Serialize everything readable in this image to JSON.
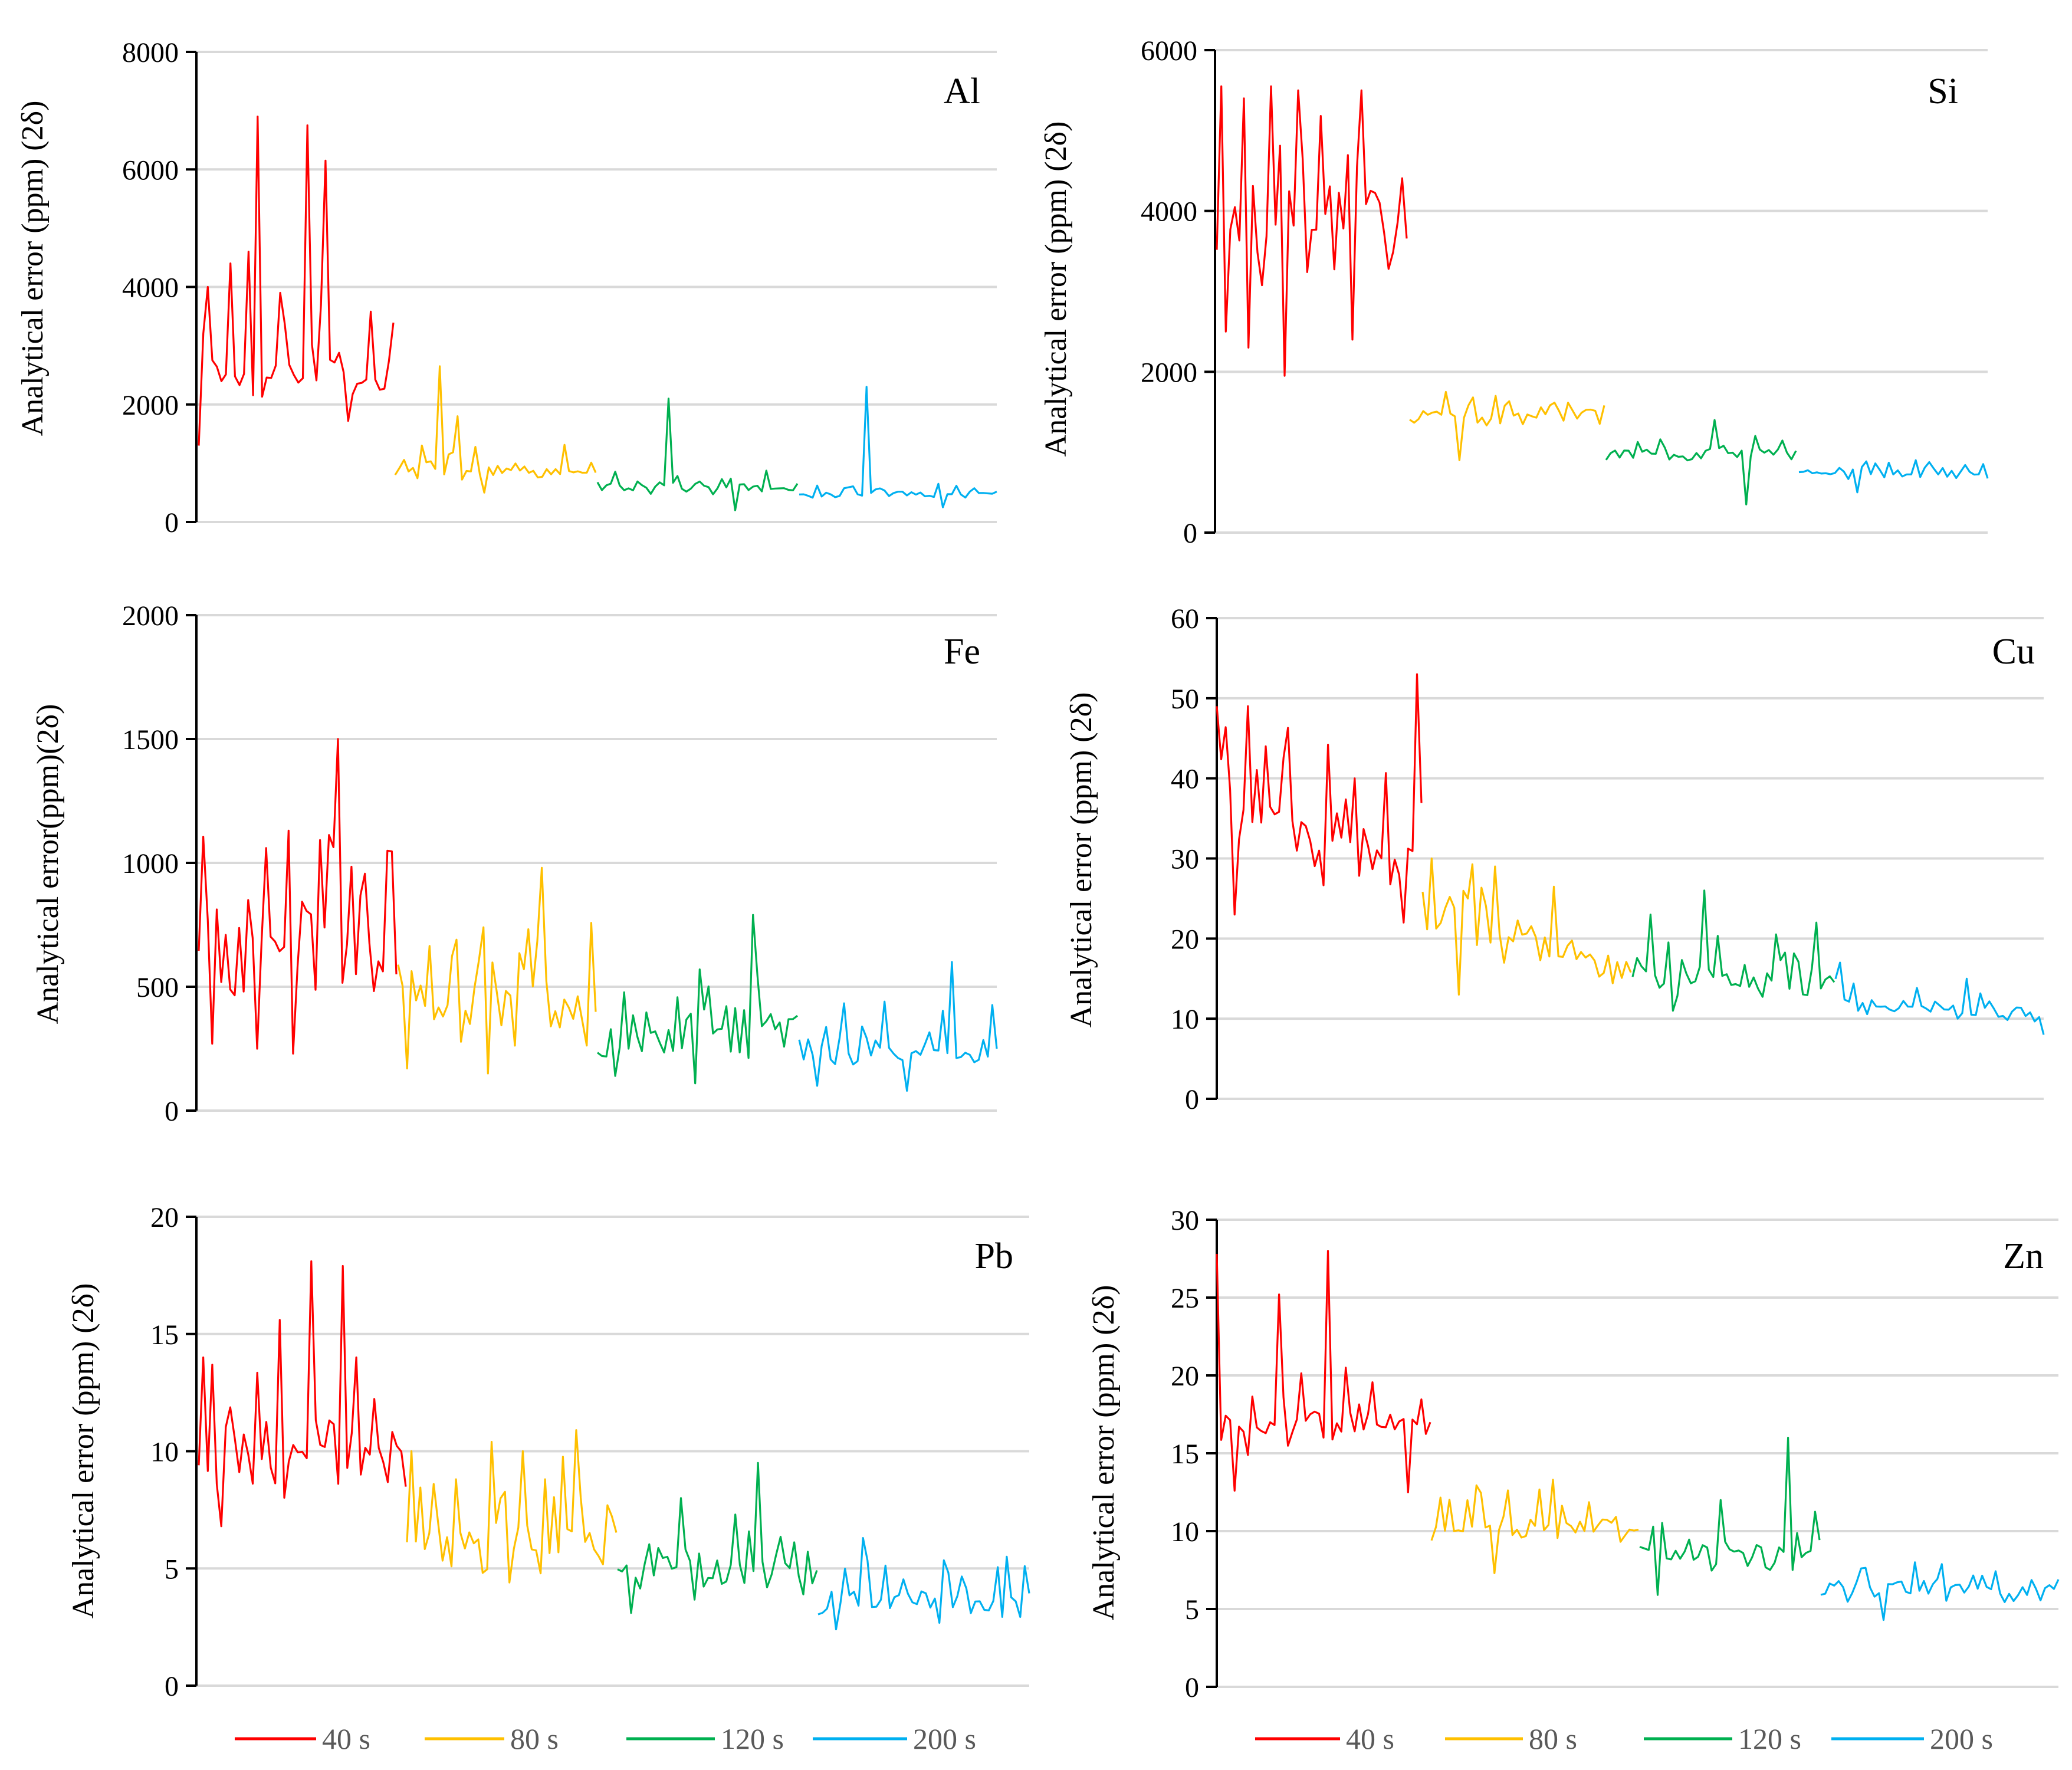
{
  "figure": {
    "series_names": [
      "40 s",
      "80 s",
      "120 s",
      "200 s"
    ]
  },
  "chart_data": [
    {
      "type": "line",
      "title": "Al",
      "ylabel": "Analytical error (ppm) (2δ)",
      "ylim": [
        0,
        8000
      ],
      "yticks": [
        0,
        2000,
        4000,
        6000,
        8000
      ],
      "grid": true,
      "legend": "none",
      "x": "sample index (unlabeled)",
      "series": [
        {
          "name": "40 s",
          "color": "#FF0000",
          "mean": 2500,
          "spread": 550,
          "spikes": [
            [
              14,
              6900
            ],
            [
              25,
              6750
            ],
            [
              29,
              6150
            ],
            [
              11,
              4600
            ],
            [
              2,
              4000
            ],
            [
              7,
              4400
            ],
            [
              19,
              3900
            ]
          ],
          "dips": [
            [
              0,
              1300
            ]
          ]
        },
        {
          "name": "80 s",
          "color": "#FFC000",
          "mean": 900,
          "spread": 170,
          "spikes": [
            [
              10,
              2650
            ],
            [
              14,
              1800
            ]
          ],
          "dips": [
            [
              20,
              500
            ]
          ]
        },
        {
          "name": "120 s",
          "color": "#00B050",
          "mean": 600,
          "spread": 110,
          "spikes": [
            [
              16,
              2100
            ]
          ],
          "dips": [
            [
              31,
              200
            ]
          ]
        },
        {
          "name": "200 s",
          "color": "#00B0F0",
          "mean": 480,
          "spread": 70,
          "spikes": [
            [
              15,
              2300
            ]
          ],
          "dips": [
            [
              33,
              250
            ]
          ]
        }
      ]
    },
    {
      "type": "line",
      "title": "Si",
      "ylabel": "Analytical error (ppm) (2δ)",
      "ylim": [
        0,
        6000
      ],
      "yticks": [
        0,
        2000,
        4000,
        6000
      ],
      "grid": true,
      "legend": "none",
      "x": "sample index (unlabeled)",
      "series": [
        {
          "name": "40 s",
          "color": "#FF0000",
          "mean": 3800,
          "spread": 700,
          "spikes": [
            [
              1,
              5550
            ],
            [
              13,
              5550
            ],
            [
              19,
              5500
            ],
            [
              34,
              5500
            ],
            [
              6,
              5400
            ]
          ],
          "dips": [
            [
              16,
              1950
            ],
            [
              32,
              2400
            ],
            [
              2,
              2500
            ],
            [
              8,
              2300
            ]
          ]
        },
        {
          "name": "80 s",
          "color": "#FFC000",
          "mean": 1430,
          "spread": 120,
          "spikes": [
            [
              8,
              1750
            ],
            [
              20,
              1700
            ]
          ],
          "dips": [
            [
              11,
              900
            ]
          ]
        },
        {
          "name": "120 s",
          "color": "#00B050",
          "mean": 1000,
          "spread": 90,
          "spikes": [
            [
              26,
              1400
            ]
          ],
          "dips": [
            [
              33,
              350
            ]
          ]
        },
        {
          "name": "200 s",
          "color": "#00B0F0",
          "mean": 740,
          "spread": 60,
          "spikes": [
            [
              28,
              900
            ]
          ],
          "dips": [
            [
              14,
              500
            ]
          ]
        }
      ]
    },
    {
      "type": "line",
      "title": "Fe",
      "ylabel": "Analytical error(ppm)(2δ)",
      "ylim": [
        0,
        2000
      ],
      "yticks": [
        0,
        500,
        1000,
        1500,
        2000
      ],
      "grid": true,
      "legend": "none",
      "x": "sample index (unlabeled)",
      "series": [
        {
          "name": "40 s",
          "color": "#FF0000",
          "mean": 650,
          "spread": 200,
          "spikes": [
            [
              32,
              1500
            ],
            [
              20,
              1130
            ],
            [
              15,
              1060
            ],
            [
              11,
              850
            ]
          ],
          "dips": [
            [
              21,
              230
            ],
            [
              13,
              250
            ],
            [
              3,
              270
            ]
          ]
        },
        {
          "name": "80 s",
          "color": "#FFC000",
          "mean": 420,
          "spread": 140,
          "spikes": [
            [
              33,
              980
            ],
            [
              19,
              740
            ],
            [
              13,
              690
            ]
          ],
          "dips": [
            [
              20,
              150
            ],
            [
              2,
              170
            ]
          ]
        },
        {
          "name": "120 s",
          "color": "#00B050",
          "mean": 310,
          "spread": 110,
          "spikes": [
            [
              35,
              790
            ],
            [
              23,
              570
            ]
          ],
          "dips": [
            [
              22,
              110
            ],
            [
              4,
              140
            ]
          ]
        },
        {
          "name": "200 s",
          "color": "#00B0F0",
          "mean": 240,
          "spread": 80,
          "spikes": [
            [
              35,
              600
            ],
            [
              19,
              440
            ]
          ],
          "dips": [
            [
              25,
              80
            ],
            [
              4,
              100
            ]
          ]
        }
      ]
    },
    {
      "type": "line",
      "title": "Cu",
      "ylabel": "Analytical error (ppm) (2δ)",
      "ylim": [
        0,
        60
      ],
      "yticks": [
        0,
        10,
        20,
        30,
        40,
        50,
        60
      ],
      "grid": true,
      "legend": "none",
      "x": "sample index (unlabeled)",
      "series": [
        {
          "name": "40 s",
          "color": "#FF0000",
          "mean": 30,
          "spread": 5,
          "trend": [
            38,
            27
          ],
          "spikes": [
            [
              44,
              53
            ],
            [
              0,
              49
            ],
            [
              7,
              49
            ],
            [
              11,
              44
            ],
            [
              30,
              40
            ]
          ],
          "dips": [
            [
              4,
              23
            ],
            [
              41,
              22
            ]
          ]
        },
        {
          "name": "80 s",
          "color": "#FFC000",
          "mean": 20,
          "spread": 3.3,
          "trend": [
            24,
            17
          ],
          "spikes": [
            [
              2,
              30
            ],
            [
              16,
              29
            ],
            [
              10,
              25
            ]
          ],
          "dips": [
            [
              8,
              13
            ]
          ]
        },
        {
          "name": "120 s",
          "color": "#00B050",
          "mean": 15,
          "spread": 2.5,
          "trend": [
            16,
            14
          ],
          "spikes": [
            [
              16,
              26
            ],
            [
              4,
              23
            ],
            [
              41,
              22
            ]
          ],
          "dips": [
            [
              9,
              11
            ]
          ]
        },
        {
          "name": "200 s",
          "color": "#00B0F0",
          "mean": 11,
          "spread": 1.2,
          "trend": [
            12,
            10
          ],
          "spikes": [
            [
              1,
              17
            ],
            [
              28,
              15
            ]
          ],
          "dips": [
            [
              45,
              8
            ]
          ]
        }
      ]
    },
    {
      "type": "line",
      "title": "Pb",
      "ylabel": "Analytical error (ppm) (2δ)",
      "ylim": [
        0,
        20
      ],
      "yticks": [
        0,
        5,
        10,
        15,
        20
      ],
      "grid": true,
      "legend": "none",
      "x": "sample index (unlabeled)",
      "series": [
        {
          "name": "40 s",
          "color": "#FF0000",
          "mean": 10,
          "spread": 1.8,
          "spikes": [
            [
              24,
              18.1
            ],
            [
              31,
              17.9
            ],
            [
              18,
              15.6
            ],
            [
              1,
              14
            ],
            [
              34,
              14
            ]
          ],
          "dips": [
            [
              5,
              6.8
            ]
          ]
        },
        {
          "name": "80 s",
          "color": "#FFC000",
          "mean": 6.3,
          "spread": 1.4,
          "spikes": [
            [
              36,
              10.9
            ],
            [
              18,
              10.4
            ],
            [
              25,
              10
            ],
            [
              1,
              10
            ]
          ],
          "dips": [
            [
              22,
              4.4
            ]
          ]
        },
        {
          "name": "120 s",
          "color": "#00B050",
          "mean": 4.9,
          "spread": 0.9,
          "spikes": [
            [
              32,
              9.5
            ],
            [
              14,
              8
            ],
            [
              27,
              7.3
            ]
          ],
          "dips": [
            [
              3,
              3.1
            ]
          ]
        },
        {
          "name": "200 s",
          "color": "#00B0F0",
          "mean": 3.6,
          "spread": 0.7,
          "spikes": [
            [
              10,
              6.3
            ],
            [
              40,
              5.5
            ],
            [
              44,
              5.1
            ]
          ],
          "dips": [
            [
              4,
              2.4
            ]
          ]
        }
      ]
    },
    {
      "type": "line",
      "title": "Zn",
      "ylabel": "Analytical error (ppm) (2δ)",
      "ylim": [
        0,
        30
      ],
      "yticks": [
        0,
        5,
        10,
        15,
        20,
        25,
        30
      ],
      "grid": true,
      "legend": "none",
      "x": "sample index (unlabeled)",
      "series": [
        {
          "name": "40 s",
          "color": "#FF0000",
          "mean": 16.5,
          "spread": 1.5,
          "spikes": [
            [
              0,
              27.8
            ],
            [
              23,
              28
            ],
            [
              13,
              25.2
            ],
            [
              27,
              20.5
            ]
          ],
          "dips": [
            [
              4,
              12.6
            ],
            [
              40,
              12.5
            ]
          ]
        },
        {
          "name": "80 s",
          "color": "#FFC000",
          "mean": 10.3,
          "spread": 1.1,
          "spikes": [
            [
              26,
              13.3
            ]
          ],
          "dips": [
            [
              14,
              7.3
            ]
          ]
        },
        {
          "name": "120 s",
          "color": "#00B050",
          "mean": 8.5,
          "spread": 1.1,
          "spikes": [
            [
              37,
              16
            ],
            [
              20,
              12
            ]
          ],
          "dips": [
            [
              4,
              5.9
            ]
          ]
        },
        {
          "name": "200 s",
          "color": "#00B0F0",
          "mean": 6.2,
          "spread": 0.7,
          "spikes": [
            [
              18,
              8
            ]
          ],
          "dips": [
            [
              12,
              4.3
            ]
          ]
        }
      ]
    }
  ]
}
